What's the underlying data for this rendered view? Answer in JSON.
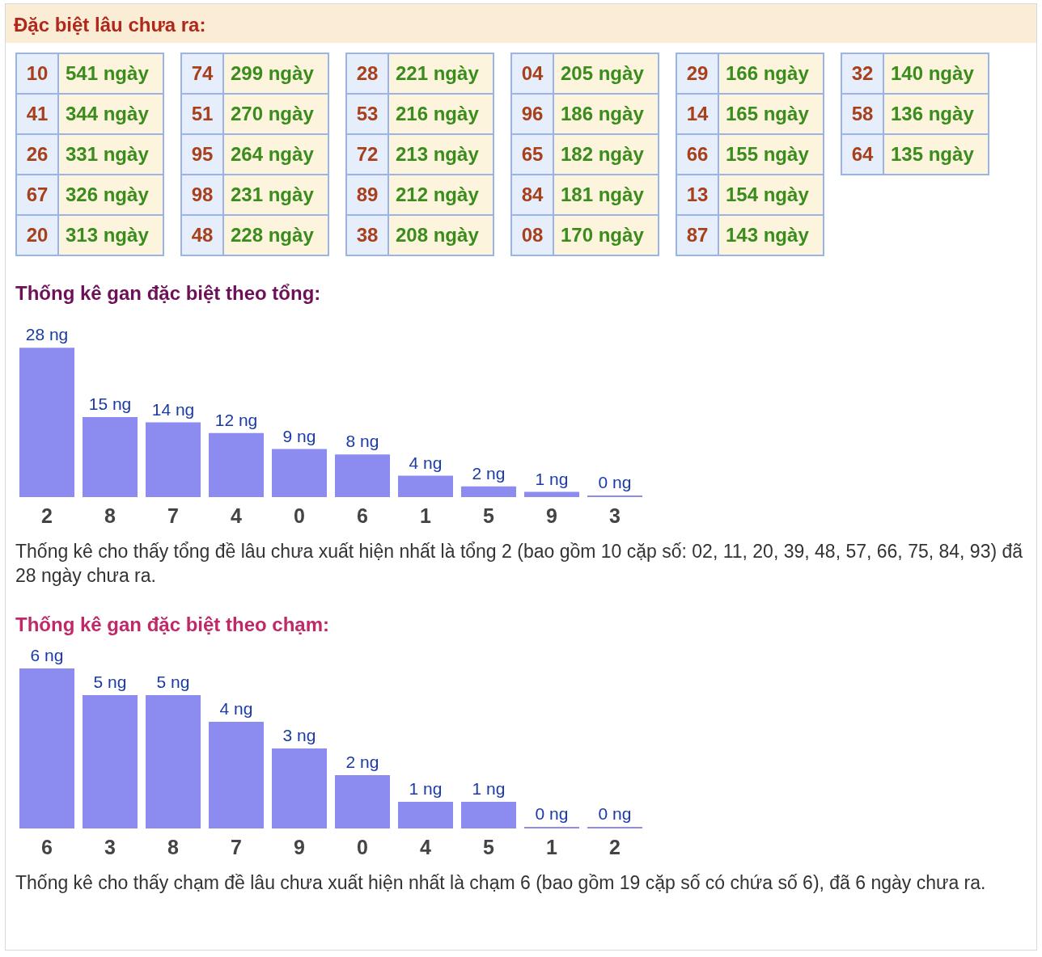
{
  "chart_data": [
    {
      "type": "other",
      "title": "Đặc biệt lâu chưa ra:",
      "annotations": [
        "10",
        "541 ngày",
        "41",
        "344 ngày",
        "26",
        "331 ngày",
        "67",
        "326 ngày",
        "20",
        "313 ngày",
        "74",
        "299 ngày",
        "51",
        "270 ngày",
        "95",
        "264 ngày",
        "98",
        "231 ngày",
        "48",
        "228 ngày",
        "28",
        "221 ngày",
        "53",
        "216 ngày",
        "72",
        "213 ngày",
        "89",
        "212 ngày",
        "38",
        "208 ngày",
        "04",
        "205 ngày",
        "96",
        "186 ngày",
        "65",
        "182 ngày",
        "84",
        "181 ngày",
        "08",
        "170 ngày",
        "29",
        "166 ngày",
        "14",
        "165 ngày",
        "66",
        "155 ngày",
        "13",
        "154 ngày",
        "87",
        "143 ngày",
        "32",
        "140 ngày",
        "58",
        "136 ngày",
        "64",
        "135 ngày"
      ]
    },
    {
      "type": "bar",
      "title": "Thống kê gan đặc biệt theo tổng:",
      "categories": [
        "2",
        "8",
        "7",
        "4",
        "0",
        "6",
        "1",
        "5",
        "9",
        "3"
      ],
      "values": [
        28,
        15,
        14,
        12,
        9,
        8,
        4,
        2,
        1,
        0
      ],
      "value_labels": [
        "28 ng",
        "15 ng",
        "14 ng",
        "12 ng",
        "9 ng",
        "8 ng",
        "4 ng",
        "2 ng",
        "1 ng",
        "0 ng"
      ],
      "color": "#8c8cf0",
      "tick_labels": "x",
      "annotations": [
        "Thống kê cho thấy tổng đề lâu chưa xuất hiện nhất là tổng 2 (bao gồm 10 cặp số: 02, 11, 20, 39, 48, 57, 66, 75, 84, 93) đã 28 ngày chưa ra."
      ]
    },
    {
      "type": "bar",
      "title": "Thống kê gan đặc biệt theo chạm:",
      "categories": [
        "6",
        "3",
        "8",
        "7",
        "9",
        "0",
        "4",
        "5",
        "1",
        "2"
      ],
      "values": [
        6,
        5,
        5,
        4,
        3,
        2,
        1,
        1,
        0,
        0
      ],
      "value_labels": [
        "6 ng",
        "5 ng",
        "5 ng",
        "4 ng",
        "3 ng",
        "2 ng",
        "1 ng",
        "1 ng",
        "0 ng",
        "0 ng"
      ],
      "color": "#8c8cf0",
      "tick_labels": "x",
      "annotations": [
        "Thống kê cho thấy chạm đề lâu chưa xuất hiện nhất là chạm 6 (bao gồm 19 cặp số có chứa số 6), đã 6 ngày chưa ra."
      ]
    }
  ]
}
